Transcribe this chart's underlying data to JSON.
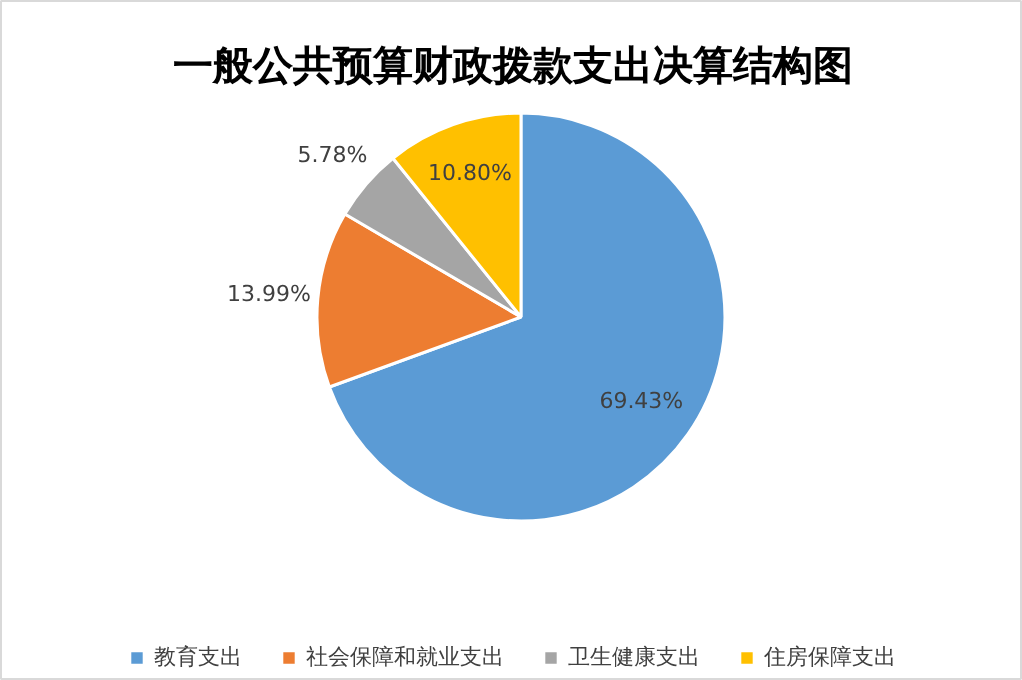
{
  "chart_data": {
    "type": "pie",
    "title": "一般公共预算财政拨款支出决算结构图",
    "categories": [
      "教育支出",
      "社会保障和就业支出",
      "卫生健康支出",
      "住房保障支出"
    ],
    "values": [
      69.43,
      13.99,
      5.78,
      10.8
    ],
    "colors": [
      "#5b9bd5",
      "#ed7d31",
      "#a5a5a5",
      "#ffc000"
    ],
    "value_labels": [
      "69.43%",
      "13.99%",
      "5.78%",
      "10.80%"
    ],
    "legend": "bottom"
  }
}
